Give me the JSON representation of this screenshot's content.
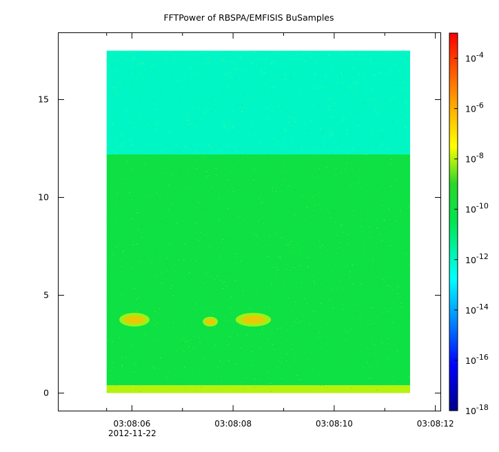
{
  "chart_data": {
    "type": "heatmap",
    "title": "FFTPower of RBSPA/EMFISIS  BuSamples",
    "xlabel": "",
    "ylabel": "",
    "x_axis": {
      "type": "time",
      "range": [
        "03:08:04.55",
        "03:08:12.10"
      ],
      "ticks": [
        "03:08:06",
        "03:08:08",
        "03:08:10",
        "03:08:12"
      ],
      "minor_ticks": [
        "03:08:05.5",
        "03:08:07",
        "03:08:09",
        "03:08:11"
      ],
      "first_tick_date": "2012-11-22"
    },
    "y_axis": {
      "range": [
        -0.9,
        18.4
      ],
      "ticks": [
        0,
        5,
        10,
        15
      ]
    },
    "data_extent": {
      "time": [
        "03:08:05.5",
        "03:08:11.5"
      ],
      "frequency": [
        0,
        17.5
      ]
    },
    "colorbar": {
      "scale": "log",
      "range": [
        1e-18,
        0.001
      ],
      "colormap": "rainbow",
      "tick_labels": [
        {
          "base": "10",
          "exp": "-4",
          "value": 0.0001
        },
        {
          "base": "10",
          "exp": "-6",
          "value": 1e-06
        },
        {
          "base": "10",
          "exp": "-8",
          "value": 1e-08
        },
        {
          "base": "10",
          "exp": "-10",
          "value": 1e-10
        },
        {
          "base": "10",
          "exp": "-12",
          "value": 1e-12
        },
        {
          "base": "10",
          "exp": "-14",
          "value": 1e-14
        },
        {
          "base": "10",
          "exp": "-16",
          "value": 1e-16
        },
        {
          "base": "10",
          "exp": "-18",
          "value": 1e-18
        }
      ]
    },
    "bands": [
      {
        "freq": [
          0,
          0.4
        ],
        "power": 1e-08
      },
      {
        "freq": [
          0.4,
          12.2
        ],
        "power": 1e-10
      },
      {
        "freq": [
          12.2,
          17.5
        ],
        "power": 1e-12
      }
    ],
    "features": [
      {
        "time": [
          "03:08:05.75",
          "03:08:06.35"
        ],
        "freq": [
          3.4,
          4.1
        ],
        "power": 1e-08
      },
      {
        "time": [
          "03:08:07.4",
          "03:08:07.7"
        ],
        "freq": [
          3.4,
          3.9
        ],
        "power": 1e-08
      },
      {
        "time": [
          "03:08:08.05",
          "03:08:08.75"
        ],
        "freq": [
          3.4,
          4.1
        ],
        "power": 1e-08
      }
    ]
  }
}
